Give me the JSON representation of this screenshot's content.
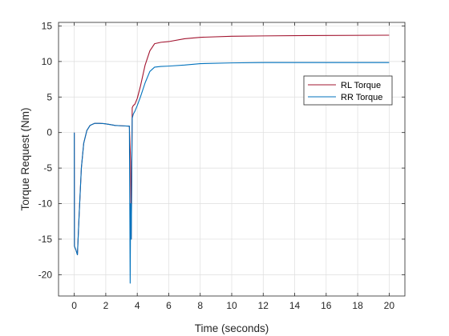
{
  "chart_data": {
    "type": "line",
    "xlabel": "Time (seconds)",
    "ylabel": "Torque Request (Nm)",
    "xlim": [
      -1,
      21
    ],
    "ylim": [
      -23,
      15.5
    ],
    "xticks": [
      0,
      2,
      4,
      6,
      8,
      10,
      12,
      14,
      16,
      18,
      20
    ],
    "yticks": [
      -20,
      -15,
      -10,
      -5,
      0,
      5,
      10,
      15
    ],
    "xtick_labels": [
      "0",
      "2",
      "4",
      "6",
      "8",
      "10",
      "12",
      "14",
      "16",
      "18",
      "20"
    ],
    "ytick_labels": [
      "-20",
      "-15",
      "-10",
      "-5",
      "0",
      "5",
      "10",
      "15"
    ],
    "grid": true,
    "legend_position": "right-upper",
    "series": [
      {
        "name": "RL Torque",
        "color": "#a2142f",
        "x": [
          0.0,
          0.01,
          0.1,
          0.2,
          0.3,
          0.45,
          0.6,
          0.8,
          1.0,
          1.3,
          1.6,
          1.9,
          2.2,
          2.6,
          3.0,
          3.5,
          3.58,
          3.62,
          3.68,
          3.75,
          3.85,
          4.0,
          4.2,
          4.5,
          4.8,
          5.1,
          5.5,
          6.0,
          7.0,
          8.0,
          10.0,
          12.0,
          15.0,
          20.0
        ],
        "y": [
          0,
          -16,
          -16.5,
          -17.2,
          -12,
          -5,
          -1.5,
          0.3,
          1.0,
          1.3,
          1.3,
          1.25,
          1.15,
          1.0,
          0.95,
          0.9,
          -4,
          -15,
          3.5,
          3.8,
          4.0,
          4.8,
          6.5,
          9.5,
          11.5,
          12.5,
          12.7,
          12.8,
          13.2,
          13.4,
          13.55,
          13.6,
          13.65,
          13.7
        ]
      },
      {
        "name": "RR Torque",
        "color": "#0072bd",
        "x": [
          0.0,
          0.01,
          0.1,
          0.2,
          0.3,
          0.45,
          0.6,
          0.8,
          1.0,
          1.3,
          1.6,
          1.9,
          2.2,
          2.6,
          3.0,
          3.5,
          3.55,
          3.58,
          3.62,
          3.68,
          3.75,
          3.85,
          4.0,
          4.2,
          4.5,
          4.8,
          5.1,
          5.5,
          6.0,
          7.0,
          8.0,
          10.0,
          12.0,
          15.0,
          20.0
        ],
        "y": [
          0,
          -16,
          -16.5,
          -17.2,
          -12,
          -5,
          -1.5,
          0.3,
          1.0,
          1.3,
          1.3,
          1.25,
          1.15,
          1.0,
          0.95,
          0.9,
          -21.2,
          -10,
          -15,
          2.0,
          2.6,
          3.0,
          3.8,
          5.0,
          7.0,
          8.6,
          9.2,
          9.3,
          9.35,
          9.5,
          9.7,
          9.8,
          9.85,
          9.85,
          9.85
        ]
      }
    ]
  }
}
